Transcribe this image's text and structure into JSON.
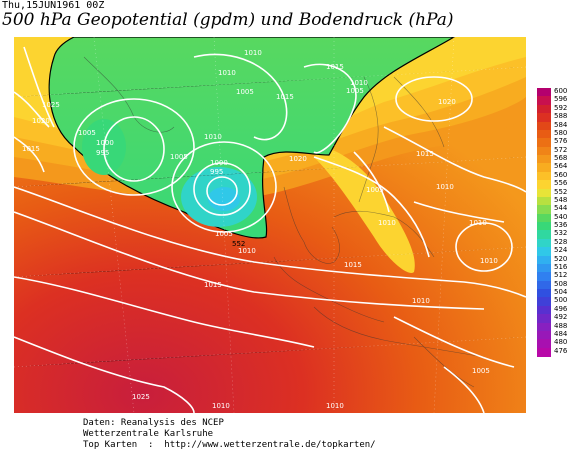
{
  "header": {
    "date": "Thu,15JUN1961 00Z",
    "title": "500 hPa Geopotential (gpdm) und Bodendruck (hPa)"
  },
  "footer": {
    "line1": "Daten: Reanalysis des NCEP",
    "line2": "Wetterzentrale Karlsruhe",
    "line3": "Top Karten  :  http://www.wetterzentrale.de/topkarten/"
  },
  "legend": {
    "levels": [
      "600",
      "596",
      "592",
      "588",
      "584",
      "580",
      "576",
      "572",
      "568",
      "564",
      "560",
      "556",
      "552",
      "548",
      "544",
      "540",
      "536",
      "532",
      "528",
      "524",
      "520",
      "516",
      "512",
      "508",
      "504",
      "500",
      "496",
      "492",
      "488",
      "484",
      "480",
      "476"
    ],
    "colors": [
      "#b4006e",
      "#c8104e",
      "#d2202e",
      "#dc3022",
      "#e24818",
      "#e85c14",
      "#ec7014",
      "#f08418",
      "#f4981c",
      "#f8ac20",
      "#fcc028",
      "#fcd430",
      "#e8e438",
      "#b8e040",
      "#88dc50",
      "#58d860",
      "#38d878",
      "#30d8a0",
      "#30d4c8",
      "#30c8e8",
      "#30b0f0",
      "#3098f0",
      "#3080f0",
      "#3068e8",
      "#3050e0",
      "#4040d8",
      "#5830d0",
      "#7028c8",
      "#8820c0",
      "#9818b8",
      "#a810b0",
      "#b808a8"
    ]
  },
  "isobar_labels": [
    "1010",
    "1010",
    "1015",
    "1010",
    "1005",
    "1015",
    "1005",
    "1020",
    "1025",
    "1020",
    "1015",
    "1005",
    "1000",
    "995",
    "1005",
    "1010",
    "1000",
    "995",
    "1005",
    "1020",
    "1015",
    "1010",
    "1005",
    "1010",
    "1010",
    "1015",
    "1010",
    "1010",
    "1005",
    "1025",
    "1010",
    "1010",
    "1010",
    "1015",
    "552"
  ]
}
